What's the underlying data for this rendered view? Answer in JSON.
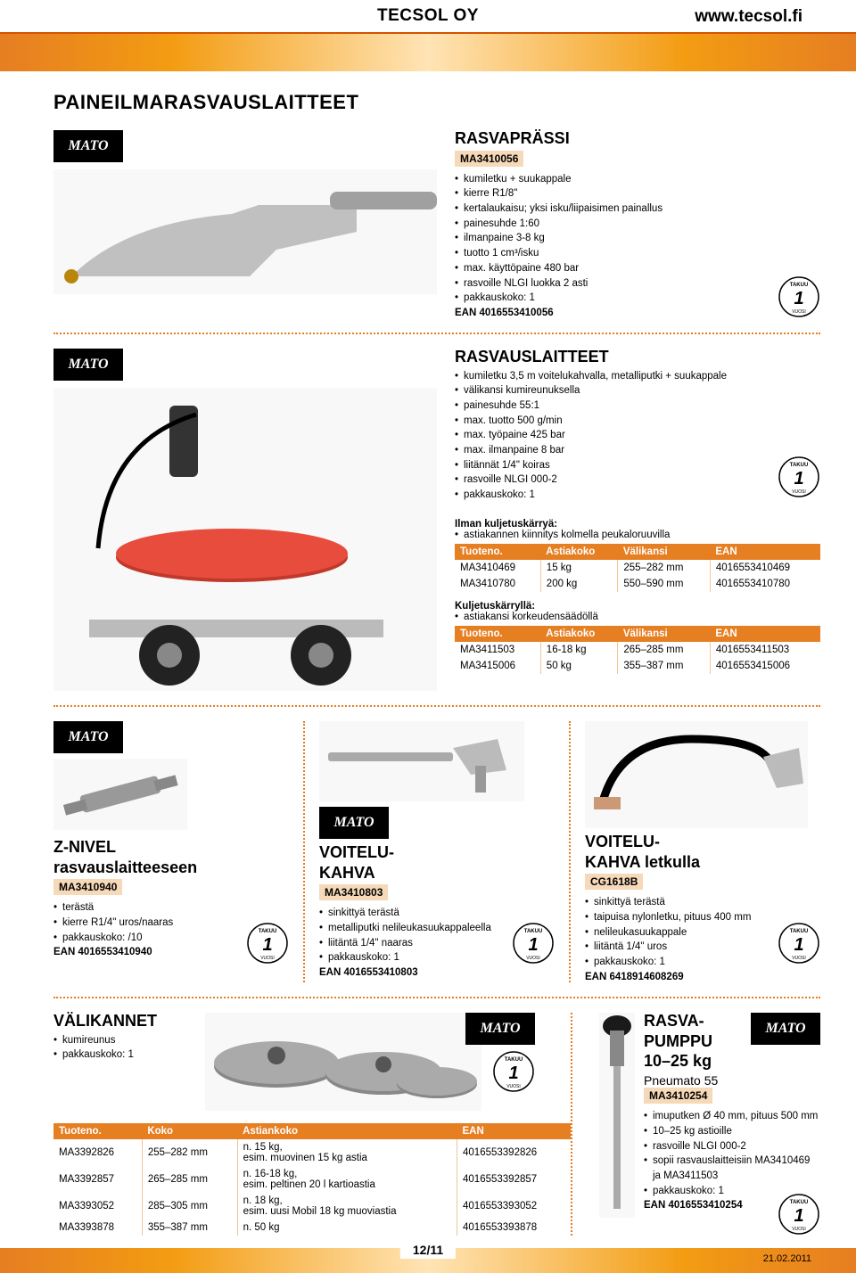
{
  "header": {
    "company": "TECSOL OY",
    "url": "www.tecsol.fi"
  },
  "section_title": "PAINEILMARASVAUSLAITTEET",
  "brand": "MATO",
  "rasvaprassi": {
    "title": "RASVAPRÄSSI",
    "model": "MA3410056",
    "specs": [
      "kumiletku + suukappale",
      "kierre R1/8\"",
      "kertalaukaisu; yksi isku/liipaisimen painallus",
      "painesuhde 1:60",
      "ilmanpaine 3-8 kg",
      "tuotto 1 cm³/isku",
      "max. käyttöpaine 480 bar",
      "rasvoille NLGI luokka 2 asti",
      "pakkauskoko: 1"
    ],
    "ean": "EAN 4016553410056"
  },
  "rasvauslaitteet": {
    "title": "RASVAUSLAITTEET",
    "specs": [
      "kumiletku 3,5 m voitelukahvalla, metalliputki + suukappale",
      "välikansi kumireunuksella",
      "painesuhde 55:1",
      "max. tuotto 500 g/min",
      "max. työpaine 425 bar",
      "max. ilmanpaine 8 bar",
      "liitännät 1/4\" koiras",
      "rasvoille NLGI 000-2",
      "pakkauskoko: 1"
    ],
    "table1_note": "Ilman kuljetuskärryä:",
    "table1_subnote": "astiakannen kiinnitys kolmella peukaloruuvilla",
    "table_headers": [
      "Tuoteno.",
      "Astiakoko",
      "Välikansi",
      "EAN"
    ],
    "table1_rows": [
      [
        "MA3410469",
        "15 kg",
        "255–282 mm",
        "4016553410469"
      ],
      [
        "MA3410780",
        "200 kg",
        "550–590 mm",
        "4016553410780"
      ]
    ],
    "table2_note": "Kuljetuskärryllä:",
    "table2_subnote": "astiakansi korkeudensäädöllä",
    "table2_rows": [
      [
        "MA3411503",
        "16-18 kg",
        "265–285 mm",
        "4016553411503"
      ],
      [
        "MA3415006",
        "50 kg",
        "355–387 mm",
        "4016553415006"
      ]
    ]
  },
  "znivel": {
    "title1": "Z-NIVEL",
    "title2": "rasvauslaitteeseen",
    "model": "MA3410940",
    "specs": [
      "terästä",
      "kierre R1/4\" uros/naaras",
      "pakkauskoko: /10"
    ],
    "ean": "EAN 4016553410940"
  },
  "voitelukahva": {
    "title1": "VOITELU-",
    "title2": "KAHVA",
    "model": "MA3410803",
    "specs": [
      "sinkittyä terästä",
      "metalliputki nelileukasuukappaleella",
      "liitäntä 1/4\" naaras",
      "pakkauskoko: 1"
    ],
    "ean": "EAN 4016553410803"
  },
  "voitelukahva_letku": {
    "title1": "VOITELU-",
    "title2": "KAHVA letkulla",
    "model": "CG1618B",
    "specs": [
      "sinkittyä terästä",
      "taipuisa nylonletku, pituus 400 mm",
      "nelileukasuukappale",
      "liitäntä 1/4\" uros",
      "pakkauskoko: 1"
    ],
    "ean": "EAN 6418914608269"
  },
  "valikannet": {
    "title": "VÄLIKANNET",
    "specs": [
      "kumireunus",
      "pakkauskoko: 1"
    ],
    "headers": [
      "Tuoteno.",
      "Koko",
      "Astiankoko",
      "EAN"
    ],
    "rows": [
      [
        "MA3392826",
        "255–282 mm",
        "n. 15 kg,\nesim. muovinen 15 kg astia",
        "4016553392826"
      ],
      [
        "MA3392857",
        "265–285 mm",
        "n. 16-18 kg,\nesim. peltinen 20 l kartioastia",
        "4016553392857"
      ],
      [
        "MA3393052",
        "285–305 mm",
        "n. 18 kg,\nesim. uusi Mobil 18 kg muoviastia",
        "4016553393052"
      ],
      [
        "MA3393878",
        "355–387 mm",
        "n. 50 kg",
        "4016553393878"
      ]
    ]
  },
  "rasvapumppu": {
    "title1": "RASVA-",
    "title2": "PUMPPU",
    "title3": "10–25 kg",
    "subtitle": "Pneumato 55",
    "model": "MA3410254",
    "specs": [
      "imuputken Ø 40 mm, pituus 500 mm",
      "10–25 kg astioille",
      "rasvoille NLGI 000-2",
      "sopii rasvauslaitteisiin MA3410469 ja MA3411503",
      "pakkauskoko: 1"
    ],
    "ean": "EAN 4016553410254"
  },
  "footer": {
    "page": "12/11",
    "date": "21.02.2011"
  },
  "colors": {
    "orange": "#e67e22",
    "peach": "#f5d9b8"
  }
}
